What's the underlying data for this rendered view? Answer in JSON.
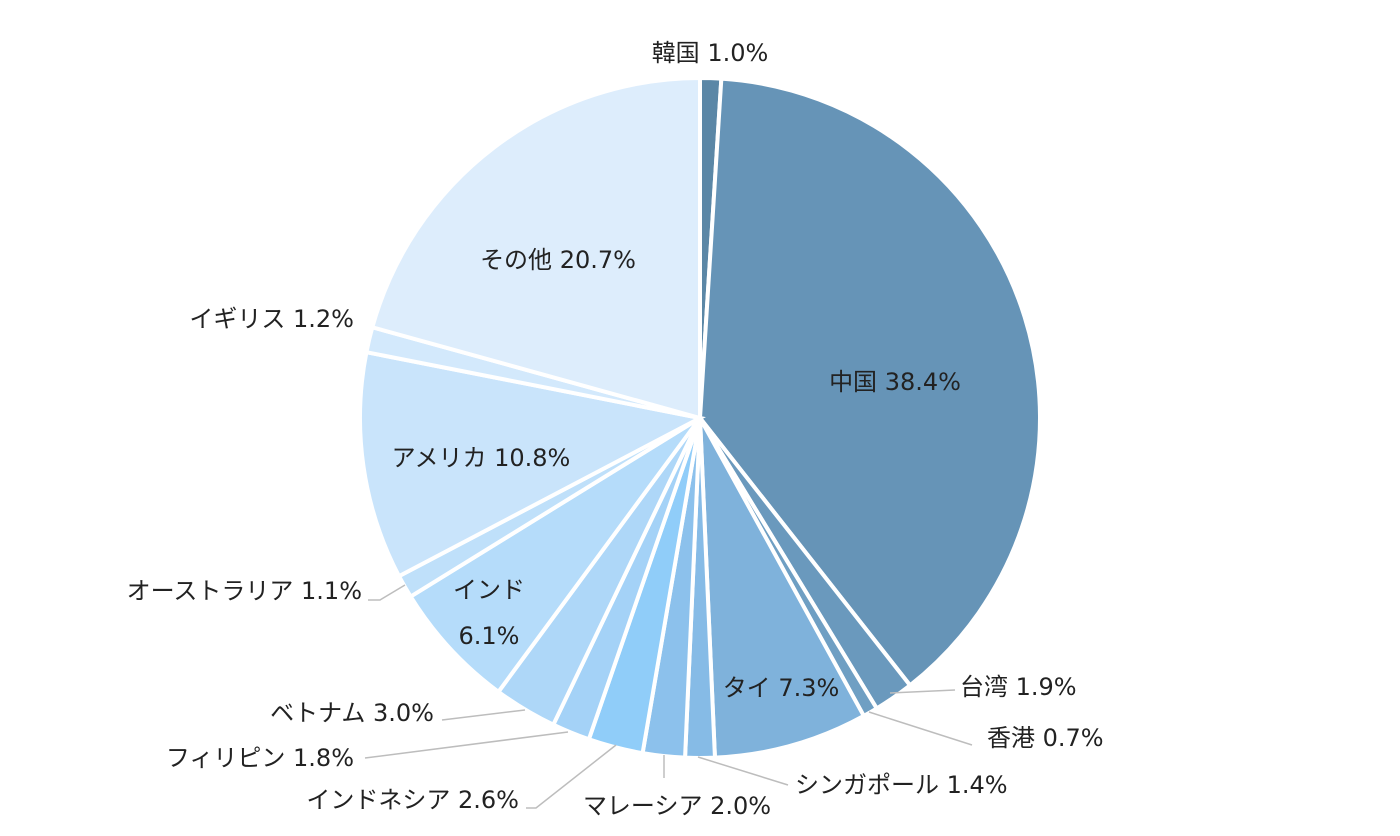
{
  "chart_data": {
    "type": "pie",
    "title": "",
    "start_angle_deg": 0,
    "direction": "clockwise",
    "slices": [
      {
        "name": "韓国",
        "value": 1.0,
        "label": "韓国 1.0%",
        "color": "#5b87a6"
      },
      {
        "name": "中国",
        "value": 38.4,
        "label": "中国 38.4%",
        "color": "#6694b7"
      },
      {
        "name": "台湾",
        "value": 1.9,
        "label": "台湾 1.9%",
        "color": "#6a99bd"
      },
      {
        "name": "香港",
        "value": 0.7,
        "label": "香港 0.7%",
        "color": "#6f9fc3"
      },
      {
        "name": "タイ",
        "value": 7.3,
        "label": "タイ 7.3%",
        "color": "#7fb2db"
      },
      {
        "name": "シンガポール",
        "value": 1.4,
        "label": "シンガポール 1.4%",
        "color": "#86bbe6"
      },
      {
        "name": "マレーシア",
        "value": 2.0,
        "label": "マレーシア 2.0%",
        "color": "#8cc1ec"
      },
      {
        "name": "インドネシア",
        "value": 2.6,
        "label": "インドネシア 2.6%",
        "color": "#90cdf9"
      },
      {
        "name": "フィリピン",
        "value": 1.8,
        "label": "フィリピン 1.8%",
        "color": "#a4d2f7"
      },
      {
        "name": "ベトナム",
        "value": 3.0,
        "label": "ベトナム 3.0%",
        "color": "#aed7f8"
      },
      {
        "name": "インド",
        "value": 6.1,
        "label": "インド 6.1%",
        "color": "#b5dcfa"
      },
      {
        "name": "オーストラリア",
        "value": 1.1,
        "label": "オーストラリア 1.1%",
        "color": "#bfe0fa"
      },
      {
        "name": "アメリカ",
        "value": 10.8,
        "label": "アメリカ 10.8%",
        "color": "#c9e4fb"
      },
      {
        "name": "イギリス",
        "value": 1.2,
        "label": "イギリス 1.2%",
        "color": "#d3e9fc"
      },
      {
        "name": "その他",
        "value": 20.7,
        "label": "その他 20.7%",
        "color": "#ddedfc"
      }
    ]
  }
}
